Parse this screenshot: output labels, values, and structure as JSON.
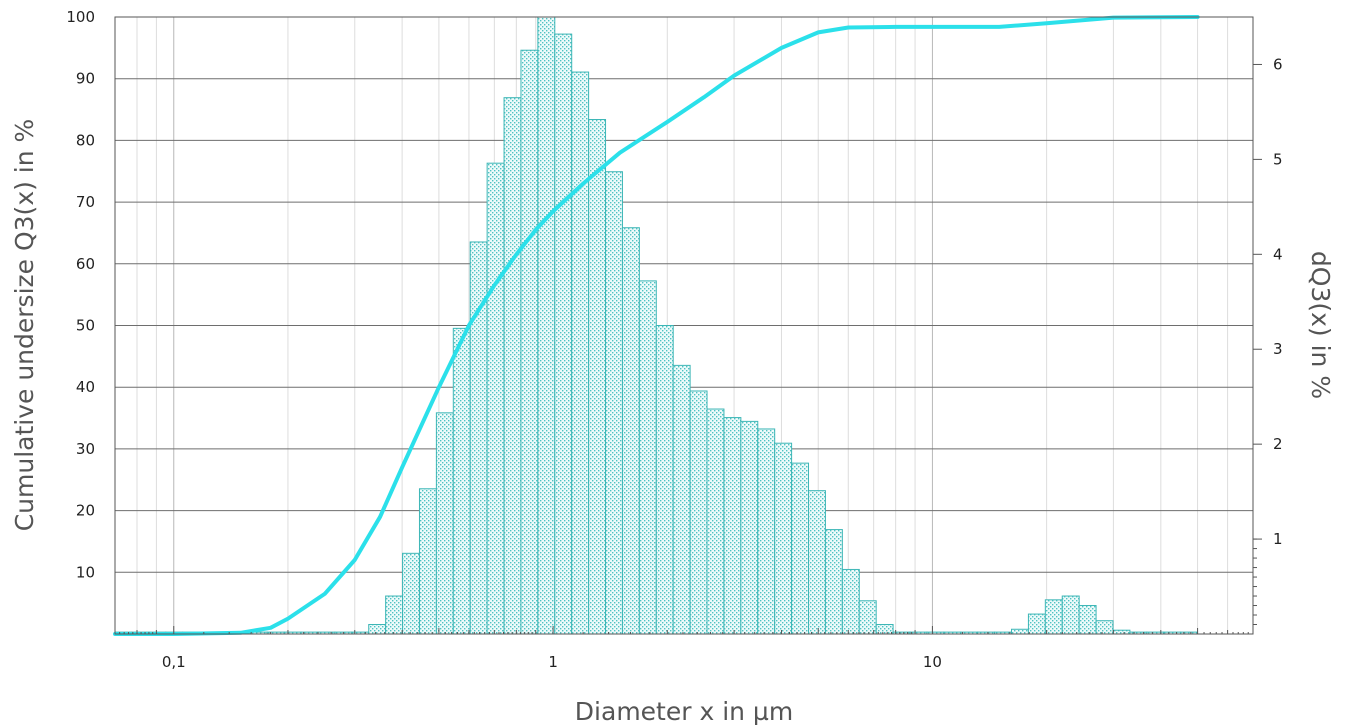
{
  "chart_data": {
    "type": "bar",
    "xlabel": "Diameter x in µm",
    "ylabel": "Cumulative undersize Q3(x) in %",
    "y2label": "dQ3(x) in %",
    "x_scale": "log",
    "xlim": [
      0.07,
      70
    ],
    "ylim": [
      0,
      100
    ],
    "y2lim": [
      0,
      6.5
    ],
    "grid": true,
    "x_tick_labels": [
      {
        "value": 0.1,
        "label": "0,1"
      },
      {
        "value": 1,
        "label": "1"
      },
      {
        "value": 10,
        "label": "10"
      }
    ],
    "y_ticks": [
      10,
      20,
      30,
      40,
      50,
      60,
      70,
      80,
      90,
      100
    ],
    "y2_ticks": [
      1,
      2,
      3,
      4,
      5,
      6
    ],
    "bins": {
      "x_start": 0.07,
      "x_end": 50,
      "count": 64,
      "density_y2": [
        0,
        0,
        0,
        0,
        0,
        0,
        0,
        0,
        0,
        0,
        0,
        0,
        0,
        0,
        0,
        0.1,
        0.4,
        0.85,
        1.53,
        2.33,
        3.22,
        4.13,
        4.96,
        5.65,
        6.15,
        6.5,
        6.32,
        5.92,
        5.42,
        4.87,
        4.28,
        3.72,
        3.25,
        2.83,
        2.56,
        2.37,
        2.28,
        2.24,
        2.16,
        2.01,
        1.8,
        1.51,
        1.1,
        0.68,
        0.35,
        0.1,
        0,
        0,
        0,
        0,
        0,
        0,
        0,
        0.05,
        0.21,
        0.36,
        0.4,
        0.3,
        0.14,
        0.04,
        0,
        0,
        0,
        0
      ]
    },
    "series": [
      {
        "type": "line",
        "axis": "y",
        "x": [
          0.07,
          0.1,
          0.15,
          0.18,
          0.2,
          0.25,
          0.3,
          0.35,
          0.4,
          0.5,
          0.6,
          0.7,
          0.8,
          0.9,
          1,
          1.2,
          1.5,
          2,
          2.5,
          3,
          4,
          5,
          6,
          8,
          10,
          15,
          20,
          30,
          50
        ],
        "values": [
          0,
          0,
          0.2,
          1,
          2.5,
          6.5,
          12,
          19,
          27,
          40,
          50,
          56.5,
          61.5,
          65.5,
          68.5,
          73,
          78,
          83,
          87,
          90.5,
          95,
          97.5,
          98.3,
          98.4,
          98.4,
          98.4,
          99,
          99.9,
          100
        ],
        "color": "#2be0ea"
      }
    ],
    "colors": {
      "bar_stroke": "#3cb6b6",
      "bar_dots": "#4fc2c2",
      "line": "#2be0ea"
    }
  }
}
